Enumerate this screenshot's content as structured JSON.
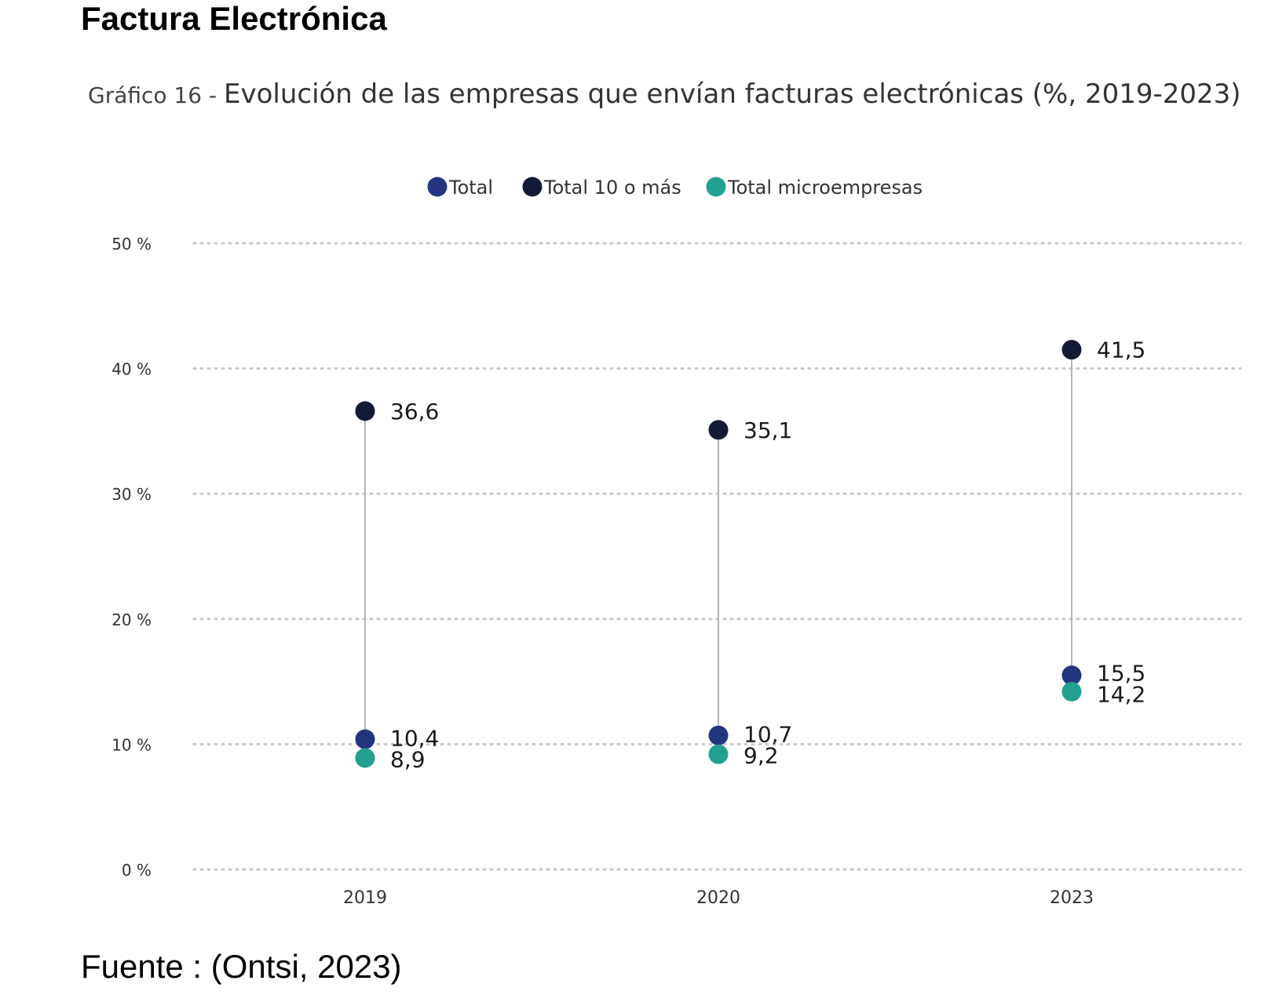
{
  "page": {
    "heading": "Factura Electrónica",
    "source": "Fuente : (Ontsi, 2023)"
  },
  "chart_data": {
    "type": "scatter",
    "title_prefix": "Gráfico 16 - ",
    "title": "Evolución de las empresas que envían facturas electrónicas (%, 2019-2023)",
    "xlabel": "",
    "ylabel": "",
    "categories": [
      "2019",
      "2020",
      "2023"
    ],
    "ylim": [
      0,
      50
    ],
    "yticks": [
      0,
      10,
      20,
      30,
      40,
      50
    ],
    "ytick_labels": [
      "0 %",
      "10 %",
      "20 %",
      "30 %",
      "40 %",
      "50 %"
    ],
    "grid": true,
    "legend_position": "top-center",
    "series": [
      {
        "name": "Total",
        "color": "#24357f",
        "values": [
          10.4,
          10.7,
          15.5
        ],
        "labels": [
          "10,4",
          "10,7",
          "15,5"
        ]
      },
      {
        "name": "Total 10 o más",
        "color": "#131a35",
        "values": [
          36.6,
          35.1,
          41.5
        ],
        "labels": [
          "36,6",
          "35,1",
          "41,5"
        ]
      },
      {
        "name": "Total microempresas",
        "color": "#23a08f",
        "values": [
          8.9,
          9.2,
          14.2
        ],
        "labels": [
          "8,9",
          "9,2",
          "14,2"
        ]
      }
    ]
  }
}
